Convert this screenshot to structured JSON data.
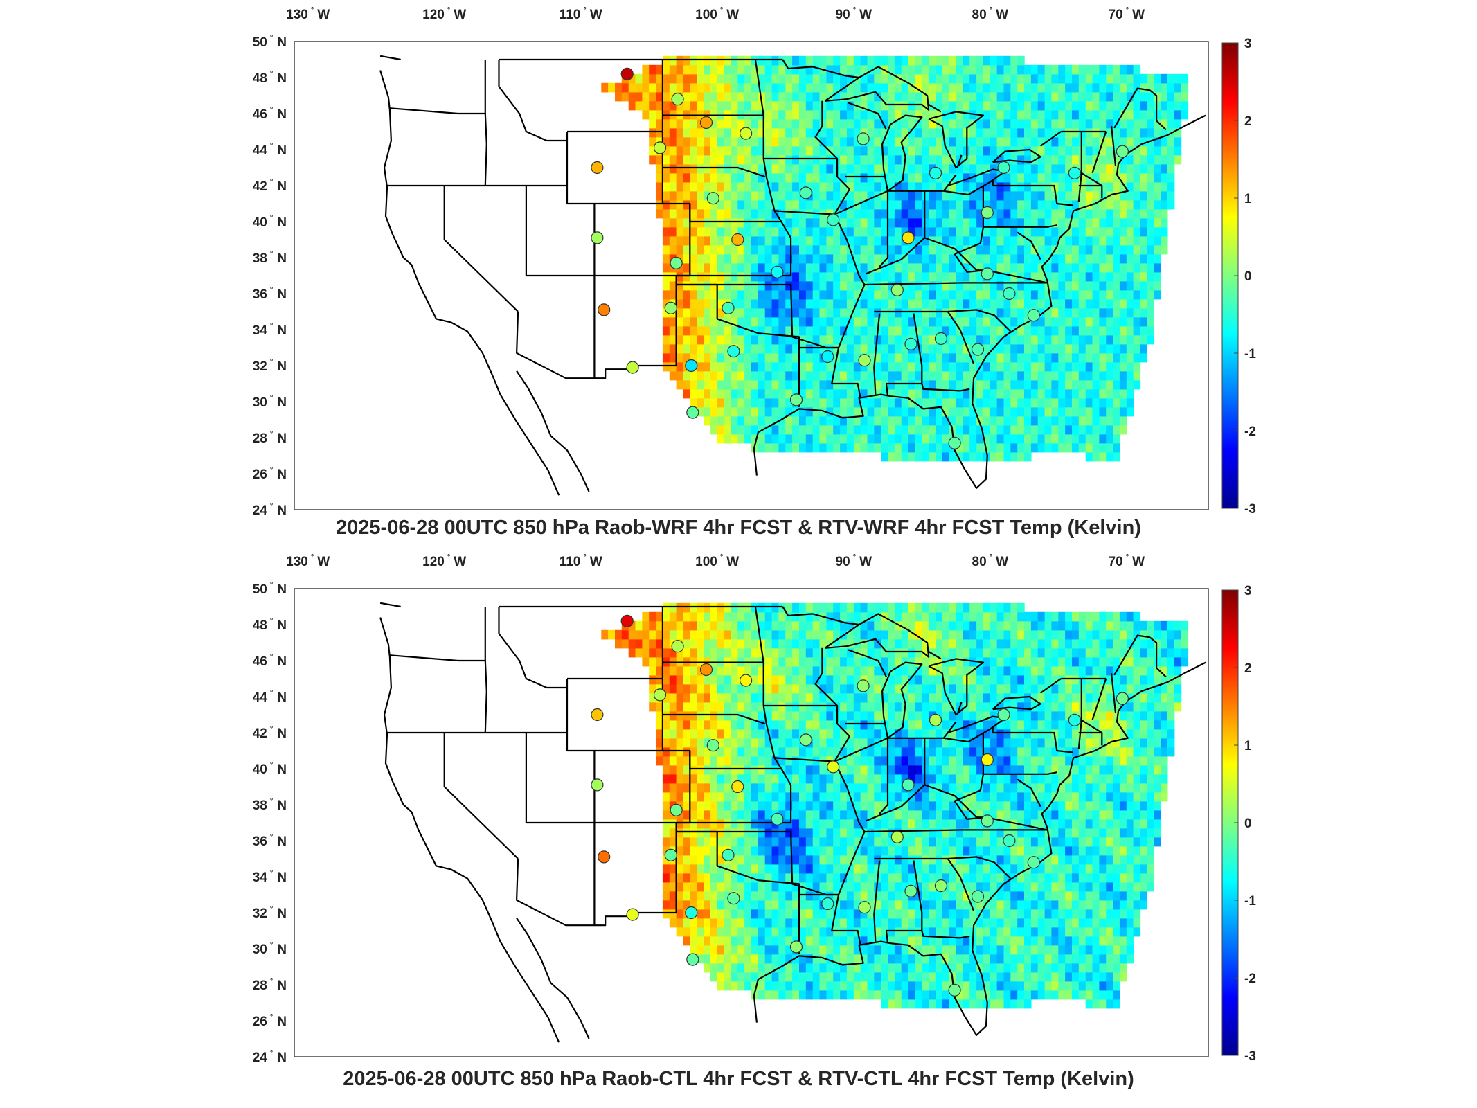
{
  "colorbar": {
    "ticks": [
      "3",
      "2",
      "1",
      "0",
      "-1",
      "-2",
      "-3"
    ],
    "colors": [
      "#00008f",
      "#0000ff",
      "#0080ff",
      "#00ffff",
      "#80ff80",
      "#ffff00",
      "#ff8000",
      "#ff0000",
      "#800000"
    ]
  },
  "axes": {
    "lon_ticks": [
      "130",
      "120",
      "110",
      "100",
      "90",
      "80",
      "70"
    ],
    "lon_unit": "W",
    "lat_ticks": [
      "50",
      "48",
      "46",
      "44",
      "42",
      "40",
      "38",
      "36",
      "34",
      "32",
      "30",
      "28",
      "26",
      "24"
    ],
    "lat_unit": "N"
  },
  "panels": [
    {
      "title": "2025-06-28 00UTC 850 hPa Raob-WRF 4hr FCST & RTV-WRF 4hr FCST Temp (Kelvin)",
      "stations": [
        {
          "lon": -106.6,
          "lat": 48.2,
          "value": 2.6
        },
        {
          "lon": -102.9,
          "lat": 46.8,
          "value": 0.2
        },
        {
          "lon": -100.8,
          "lat": 45.5,
          "value": 1.3
        },
        {
          "lon": -97.9,
          "lat": 44.9,
          "value": 0.5
        },
        {
          "lon": -108.8,
          "lat": 43.0,
          "value": 1.2
        },
        {
          "lon": -104.2,
          "lat": 44.1,
          "value": 0.4
        },
        {
          "lon": -89.3,
          "lat": 44.6,
          "value": -0.1
        },
        {
          "lon": -84.0,
          "lat": 42.7,
          "value": -0.6
        },
        {
          "lon": -79.0,
          "lat": 43.0,
          "value": -0.4
        },
        {
          "lon": -73.8,
          "lat": 42.7,
          "value": -0.6
        },
        {
          "lon": -70.3,
          "lat": 43.9,
          "value": -0.1
        },
        {
          "lon": -93.5,
          "lat": 41.6,
          "value": -0.3
        },
        {
          "lon": -100.3,
          "lat": 41.3,
          "value": 0.0
        },
        {
          "lon": -91.5,
          "lat": 40.1,
          "value": -0.4
        },
        {
          "lon": -86.0,
          "lat": 39.1,
          "value": 0.9
        },
        {
          "lon": -80.2,
          "lat": 40.5,
          "value": 0.0
        },
        {
          "lon": -108.8,
          "lat": 39.1,
          "value": 0.2
        },
        {
          "lon": -98.5,
          "lat": 39.0,
          "value": 1.2
        },
        {
          "lon": -103.0,
          "lat": 37.7,
          "value": -0.1
        },
        {
          "lon": -95.6,
          "lat": 37.2,
          "value": -0.7
        },
        {
          "lon": -80.2,
          "lat": 37.1,
          "value": -0.2
        },
        {
          "lon": -86.8,
          "lat": 36.2,
          "value": 0.1
        },
        {
          "lon": -78.6,
          "lat": 36.0,
          "value": -0.4
        },
        {
          "lon": -108.3,
          "lat": 35.1,
          "value": 1.5
        },
        {
          "lon": -103.4,
          "lat": 35.2,
          "value": 0.1
        },
        {
          "lon": -99.2,
          "lat": 35.2,
          "value": -0.4
        },
        {
          "lon": -76.8,
          "lat": 34.8,
          "value": -0.2
        },
        {
          "lon": -98.8,
          "lat": 32.8,
          "value": -0.6
        },
        {
          "lon": -91.9,
          "lat": 32.5,
          "value": -0.8
        },
        {
          "lon": -89.2,
          "lat": 32.3,
          "value": 0.2
        },
        {
          "lon": -85.8,
          "lat": 33.2,
          "value": -0.5
        },
        {
          "lon": -83.6,
          "lat": 33.5,
          "value": -0.4
        },
        {
          "lon": -80.9,
          "lat": 32.9,
          "value": -0.3
        },
        {
          "lon": -106.2,
          "lat": 31.9,
          "value": 0.4
        },
        {
          "lon": -101.9,
          "lat": 32.0,
          "value": -0.9
        },
        {
          "lon": -94.2,
          "lat": 30.1,
          "value": -0.1
        },
        {
          "lon": -101.8,
          "lat": 29.4,
          "value": -0.2
        },
        {
          "lon": -82.6,
          "lat": 27.7,
          "value": -0.2
        }
      ]
    },
    {
      "title": "2025-06-28 00UTC 850 hPa Raob-CTL 4hr FCST & RTV-CTL 4hr FCST Temp (Kelvin)",
      "stations": [
        {
          "lon": -106.6,
          "lat": 48.2,
          "value": 2.4
        },
        {
          "lon": -102.9,
          "lat": 46.8,
          "value": 0.3
        },
        {
          "lon": -100.8,
          "lat": 45.5,
          "value": 1.4
        },
        {
          "lon": -97.9,
          "lat": 44.9,
          "value": 0.8
        },
        {
          "lon": -108.8,
          "lat": 43.0,
          "value": 1.1
        },
        {
          "lon": -104.2,
          "lat": 44.1,
          "value": 0.3
        },
        {
          "lon": -89.3,
          "lat": 44.6,
          "value": 0.1
        },
        {
          "lon": -84.0,
          "lat": 42.7,
          "value": 0.3
        },
        {
          "lon": -79.0,
          "lat": 43.0,
          "value": -0.2
        },
        {
          "lon": -73.8,
          "lat": 42.7,
          "value": -0.6
        },
        {
          "lon": -70.3,
          "lat": 43.9,
          "value": -0.1
        },
        {
          "lon": -93.5,
          "lat": 41.6,
          "value": 0.0
        },
        {
          "lon": -100.3,
          "lat": 41.3,
          "value": -0.1
        },
        {
          "lon": -91.5,
          "lat": 40.1,
          "value": 0.6
        },
        {
          "lon": -86.0,
          "lat": 39.1,
          "value": -0.3
        },
        {
          "lon": -80.2,
          "lat": 40.5,
          "value": 0.8
        },
        {
          "lon": -108.8,
          "lat": 39.1,
          "value": 0.2
        },
        {
          "lon": -98.5,
          "lat": 39.0,
          "value": 0.9
        },
        {
          "lon": -103.0,
          "lat": 37.7,
          "value": -0.1
        },
        {
          "lon": -95.6,
          "lat": 37.2,
          "value": -0.3
        },
        {
          "lon": -80.2,
          "lat": 37.1,
          "value": -0.1
        },
        {
          "lon": -86.8,
          "lat": 36.2,
          "value": 0.3
        },
        {
          "lon": -78.6,
          "lat": 36.0,
          "value": -0.4
        },
        {
          "lon": -108.3,
          "lat": 35.1,
          "value": 1.6
        },
        {
          "lon": -103.4,
          "lat": 35.2,
          "value": -0.2
        },
        {
          "lon": -99.2,
          "lat": 35.2,
          "value": -0.4
        },
        {
          "lon": -76.8,
          "lat": 34.8,
          "value": -0.2
        },
        {
          "lon": -98.8,
          "lat": 32.8,
          "value": -0.2
        },
        {
          "lon": -91.9,
          "lat": 32.5,
          "value": -0.5
        },
        {
          "lon": -89.2,
          "lat": 32.3,
          "value": 0.2
        },
        {
          "lon": -85.8,
          "lat": 33.2,
          "value": -0.1
        },
        {
          "lon": -83.6,
          "lat": 33.5,
          "value": 0.1
        },
        {
          "lon": -80.9,
          "lat": 32.9,
          "value": -0.2
        },
        {
          "lon": -106.2,
          "lat": 31.9,
          "value": 0.6
        },
        {
          "lon": -101.9,
          "lat": 32.0,
          "value": -0.6
        },
        {
          "lon": -94.2,
          "lat": 30.1,
          "value": 0.1
        },
        {
          "lon": -101.8,
          "lat": 29.4,
          "value": -0.2
        },
        {
          "lon": -82.6,
          "lat": 27.7,
          "value": -0.1
        }
      ]
    }
  ]
}
